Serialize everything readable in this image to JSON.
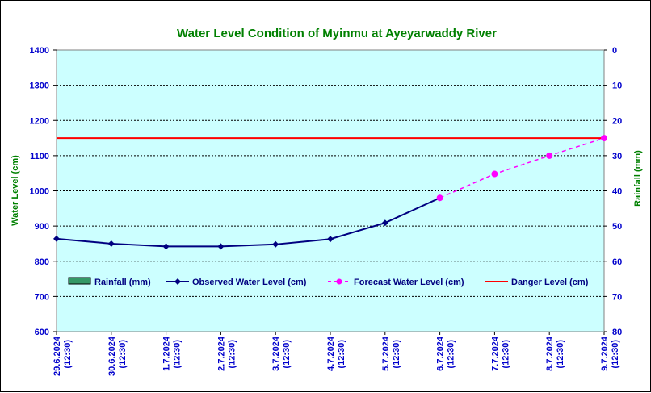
{
  "colors": {
    "plot_bg": "#ccffff",
    "title": "#008000",
    "ticks": "#0000cc",
    "observed": "#000080",
    "forecast": "#ff00ff",
    "danger": "#ff0000",
    "rainfall": "#339966"
  },
  "chart_data": {
    "type": "line",
    "title": "Water Level Condition of Myinmu at Ayeyarwaddy River",
    "ylabel": "Water Level (cm)",
    "y2label": "Rainfall (mm)",
    "ylim": [
      600,
      1400
    ],
    "y2lim": [
      80,
      0
    ],
    "yticks": [
      600,
      700,
      800,
      900,
      1000,
      1100,
      1200,
      1300,
      1400
    ],
    "y2ticks": [
      80,
      70,
      60,
      50,
      40,
      30,
      20,
      10,
      0
    ],
    "grid": true,
    "legend_position": "inside-lower",
    "categories": [
      {
        "date": "29.6.2024",
        "time": "(12:30)"
      },
      {
        "date": "30.6.2024",
        "time": "(12:30)"
      },
      {
        "date": "1.7.2024",
        "time": "(12:30)"
      },
      {
        "date": "2.7.2024",
        "time": "(12:30)"
      },
      {
        "date": "3.7.2024",
        "time": "(12:30)"
      },
      {
        "date": "4.7.2024",
        "time": "(12:30)"
      },
      {
        "date": "5.7.2024",
        "time": "(12:30)"
      },
      {
        "date": "6.7.2024",
        "time": "(12:30)"
      },
      {
        "date": "7.7.2024",
        "time": "(12:30)"
      },
      {
        "date": "8.7.2024",
        "time": "(12:30)"
      },
      {
        "date": "9.7.2024",
        "time": "(12:30)"
      }
    ],
    "series": [
      {
        "name": "Rainfall (mm)",
        "kind": "bar",
        "values": [
          0,
          0,
          0,
          0,
          0,
          0,
          0,
          0,
          null,
          null,
          null
        ]
      },
      {
        "name": "Observed Water Level (cm)",
        "kind": "line",
        "values": [
          864,
          850,
          842,
          842,
          848,
          863,
          909,
          980,
          null,
          null,
          null
        ]
      },
      {
        "name": "Forecast Water Level (cm)",
        "kind": "dashed-line",
        "values": [
          null,
          null,
          null,
          null,
          null,
          null,
          null,
          980,
          1048,
          1100,
          1150
        ]
      },
      {
        "name": "Danger Level (cm)",
        "kind": "line",
        "values": [
          1150,
          1150,
          1150,
          1150,
          1150,
          1150,
          1150,
          1150,
          1150,
          1150,
          1150
        ]
      }
    ]
  }
}
